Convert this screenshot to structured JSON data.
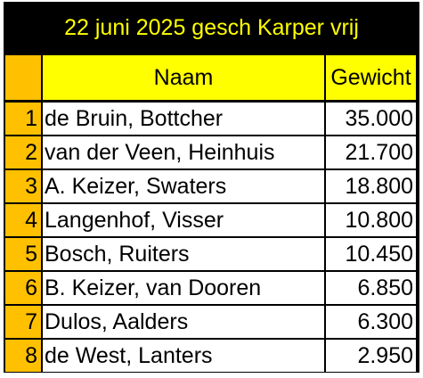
{
  "title": "22 juni 2025 gesch Karper vrij",
  "colors": {
    "title_bg": "#000000",
    "title_text": "#ffff00",
    "header_bg": "#ffff00",
    "rank_bg": "#ffc000",
    "cell_bg": "#ffffff"
  },
  "headers": {
    "rank": "",
    "name": "Naam",
    "weight": "Gewicht"
  },
  "rows": [
    {
      "rank": "1",
      "name": "de Bruin, Bottcher",
      "weight": "35.000"
    },
    {
      "rank": "2",
      "name": "van der Veen, Heinhuis",
      "weight": "21.700"
    },
    {
      "rank": "3",
      "name": "A. Keizer, Swaters",
      "weight": "18.800"
    },
    {
      "rank": "4",
      "name": "Langenhof, Visser",
      "weight": "10.800"
    },
    {
      "rank": "5",
      "name": "Bosch, Ruiters",
      "weight": "10.450"
    },
    {
      "rank": "6",
      "name": "B. Keizer, van Dooren",
      "weight": "6.850"
    },
    {
      "rank": "7",
      "name": "Dulos, Aalders",
      "weight": "6.300"
    },
    {
      "rank": "8",
      "name": "de West, Lanters",
      "weight": "2.950"
    }
  ]
}
